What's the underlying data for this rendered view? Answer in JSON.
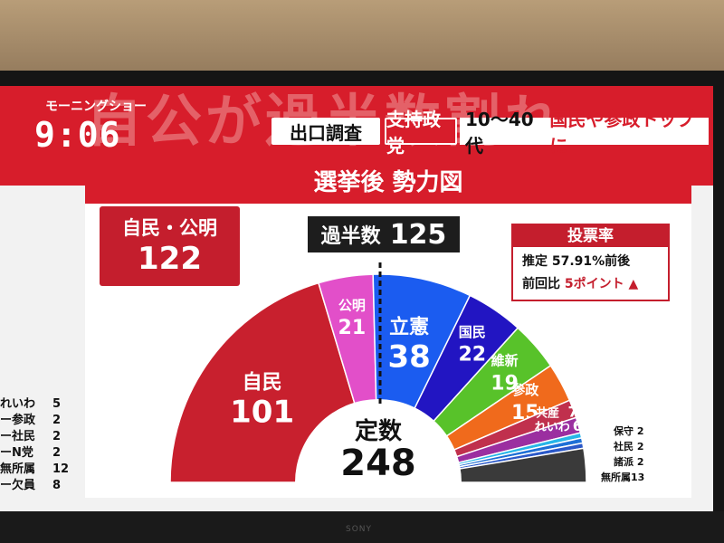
{
  "program": {
    "name": "モーニングショー",
    "time": "9:06",
    "headline_ghost": "自公が過半数割れ"
  },
  "banner": {
    "exit_poll": "出口調査",
    "support": "支持政党",
    "headline_pre": "10〜40代 ",
    "headline_accent": "国民や参政トップに"
  },
  "panel": {
    "title": "選挙後 勢力図",
    "coalition_label": "自民・公明",
    "coalition_total": "122",
    "majority_label": "過半数",
    "majority_value": "125",
    "total_label": "定数",
    "total_value": "248"
  },
  "turnout": {
    "title": "投票率",
    "estimate": "推定 57.91%前後",
    "prev_label": "前回比",
    "prev_value": "5ポイント"
  },
  "chart_data": {
    "type": "pie",
    "total": 248,
    "seats": [
      {
        "name": "自民",
        "value": 101,
        "color": "#c8202e"
      },
      {
        "name": "公明",
        "value": 21,
        "color": "#e24fc9"
      },
      {
        "name": "立憲",
        "value": 38,
        "color": "#1b5cf0"
      },
      {
        "name": "国民",
        "value": 22,
        "color": "#2215c2"
      },
      {
        "name": "維新",
        "value": 19,
        "color": "#58c22a"
      },
      {
        "name": "参政",
        "value": 15,
        "color": "#f06a1c"
      },
      {
        "name": "共産",
        "value": 7,
        "color": "#c0304d"
      },
      {
        "name": "れいわ",
        "value": 6,
        "color": "#9b2fa0"
      },
      {
        "name": "保守",
        "value": 2,
        "color": "#27b6e8"
      },
      {
        "name": "社民",
        "value": 2,
        "color": "#1d6fd6"
      },
      {
        "name": "諸派",
        "value": 2,
        "color": "#2a58c8"
      },
      {
        "name": "無所属",
        "value": 13,
        "color": "#3a3a3a"
      }
    ]
  },
  "left_list": [
    {
      "name": "れいわ",
      "value": "5"
    },
    {
      "name": "ー参政",
      "value": "2"
    },
    {
      "name": "ー社民",
      "value": "2"
    },
    {
      "name": "ーN党",
      "value": "2"
    },
    {
      "name": "無所属",
      "value": "12"
    },
    {
      "name": "ー欠員",
      "value": "8"
    }
  ],
  "small_labels": {
    "hoshu": "保守 2",
    "shamin": "社民 2",
    "shoha": "諸派 2",
    "mushozoku": "無所属13"
  },
  "bezel": "SONY"
}
